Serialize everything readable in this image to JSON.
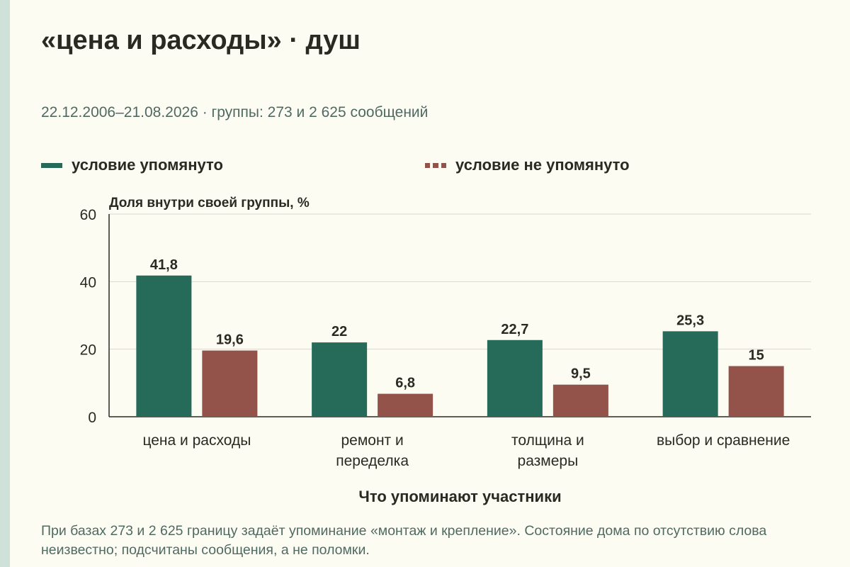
{
  "header": {
    "title": "«цена и расходы» · душ",
    "subtitle": "22.12.2006–21.08.2026 · группы: 273 и 2 625 сообщений"
  },
  "colors": {
    "series_a": "#266a5a",
    "series_b": "#93524a",
    "grid": "#d9d8cf",
    "axis": "#2a2a22",
    "text": "#2a2a22",
    "muted": "#4f6a62",
    "background": "#fdfcf3",
    "strip": "#cfe2d9"
  },
  "chart_data": {
    "type": "bar",
    "title": "«цена и расходы» · душ",
    "ylabel": "Доля внутри своей группы, %",
    "xlabel": "Что упоминают участники",
    "ylim": [
      0,
      60
    ],
    "yticks": [
      "0",
      "20",
      "40",
      "60"
    ],
    "grid": true,
    "legend_position": "top",
    "categories": [
      [
        "цена и расходы"
      ],
      [
        "ремонт и",
        "переделка"
      ],
      [
        "толщина и",
        "размеры"
      ],
      [
        "выбор и сравнение"
      ]
    ],
    "series": [
      {
        "name": "условие упомянуто",
        "values": [
          41.8,
          22,
          22.7,
          25.3
        ],
        "labels": [
          "41,8",
          "22",
          "22,7",
          "25,3"
        ]
      },
      {
        "name": "условие не упомянуто",
        "values": [
          19.6,
          6.8,
          9.5,
          15
        ],
        "labels": [
          "19,6",
          "6,8",
          "9,5",
          "15"
        ]
      }
    ]
  },
  "footer": {
    "note": "При базах 273 и 2 625 границу задаёт упоминание «монтаж и крепление». Состояние дома по отсутствию слова неизвестно; подсчитаны сообщения, а не поломки."
  }
}
